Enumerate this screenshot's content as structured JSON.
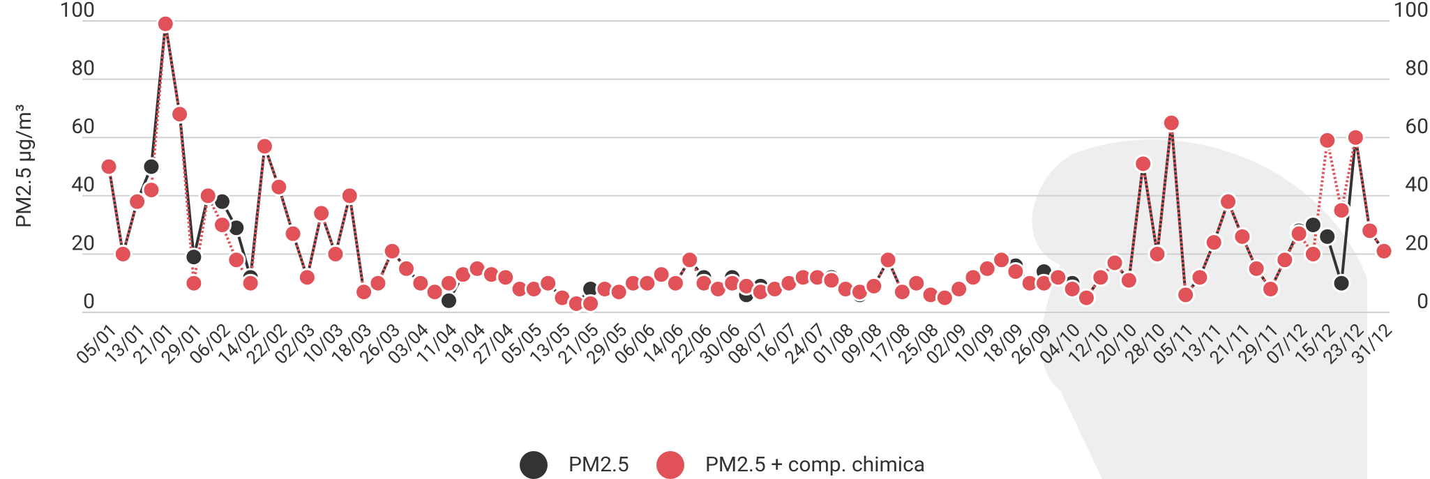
{
  "chart_data": {
    "type": "line",
    "y_label": "PM2.5  µg/m³",
    "categories": [
      "05/01",
      null,
      "13/01",
      null,
      "21/01",
      null,
      "29/01",
      null,
      "06/02",
      null,
      "14/02",
      null,
      "22/02",
      null,
      "02/03",
      null,
      "10/03",
      null,
      "18/03",
      null,
      "26/03",
      null,
      "03/04",
      null,
      "11/04",
      null,
      "19/04",
      null,
      "27/04",
      null,
      "05/05",
      null,
      "13/05",
      null,
      "21/05",
      null,
      "29/05",
      null,
      "06/06",
      null,
      "14/06",
      null,
      "22/06",
      null,
      "30/06",
      null,
      "08/07",
      null,
      "16/07",
      null,
      "24/07",
      null,
      "01/08",
      null,
      "09/08",
      null,
      "17/08",
      null,
      "25/08",
      null,
      "02/09",
      null,
      "10/09",
      null,
      "18/09",
      null,
      "26/09",
      null,
      "04/10",
      null,
      "12/10",
      null,
      "20/10",
      null,
      "28/10",
      null,
      "05/11",
      null,
      "13/11",
      null,
      "21/11",
      null,
      "29/11",
      null,
      "07/12",
      null,
      "15/12",
      null,
      "23/12",
      null,
      "31/12"
    ],
    "series": [
      {
        "name": "PM2.5",
        "color": "#333333",
        "values": [
          50,
          20,
          38,
          50,
          99,
          68,
          19,
          40,
          38,
          29,
          12,
          57,
          43,
          27,
          12,
          34,
          20,
          40,
          7,
          10,
          21,
          15,
          10,
          7,
          4,
          13,
          15,
          13,
          12,
          8,
          8,
          10,
          5,
          3,
          8,
          8,
          7,
          10,
          10,
          13,
          10,
          18,
          12,
          8,
          12,
          6,
          9,
          8,
          10,
          12,
          12,
          12,
          8,
          6,
          9,
          18,
          7,
          10,
          6,
          5,
          8,
          12,
          15,
          18,
          16,
          10,
          14,
          12,
          10,
          5,
          12,
          17,
          11,
          51,
          20,
          65,
          6,
          12,
          24,
          38,
          26,
          15,
          8,
          18,
          28,
          30,
          26,
          10,
          60,
          28,
          21
        ]
      },
      {
        "name": "PM2.5 + comp. chimica",
        "color": "#e05257",
        "values": [
          50,
          20,
          38,
          42,
          99,
          68,
          10,
          40,
          30,
          18,
          10,
          57,
          43,
          27,
          12,
          34,
          20,
          40,
          7,
          10,
          21,
          15,
          10,
          7,
          10,
          13,
          15,
          13,
          12,
          8,
          8,
          10,
          5,
          3,
          3,
          8,
          7,
          10,
          10,
          13,
          10,
          18,
          10,
          8,
          10,
          9,
          7,
          8,
          10,
          12,
          12,
          11,
          8,
          7,
          9,
          18,
          7,
          10,
          6,
          5,
          8,
          12,
          15,
          18,
          14,
          10,
          10,
          12,
          8,
          5,
          12,
          17,
          11,
          51,
          20,
          65,
          6,
          12,
          24,
          38,
          26,
          15,
          8,
          18,
          27,
          20,
          59,
          35,
          60,
          28,
          21
        ]
      }
    ],
    "ylim": [
      0,
      100
    ],
    "yticks": [
      0,
      20,
      40,
      60,
      80,
      100
    ],
    "y2lim": [
      0,
      100
    ],
    "y2ticks": [
      0,
      20,
      40,
      60,
      80,
      100
    ],
    "grid": true
  }
}
